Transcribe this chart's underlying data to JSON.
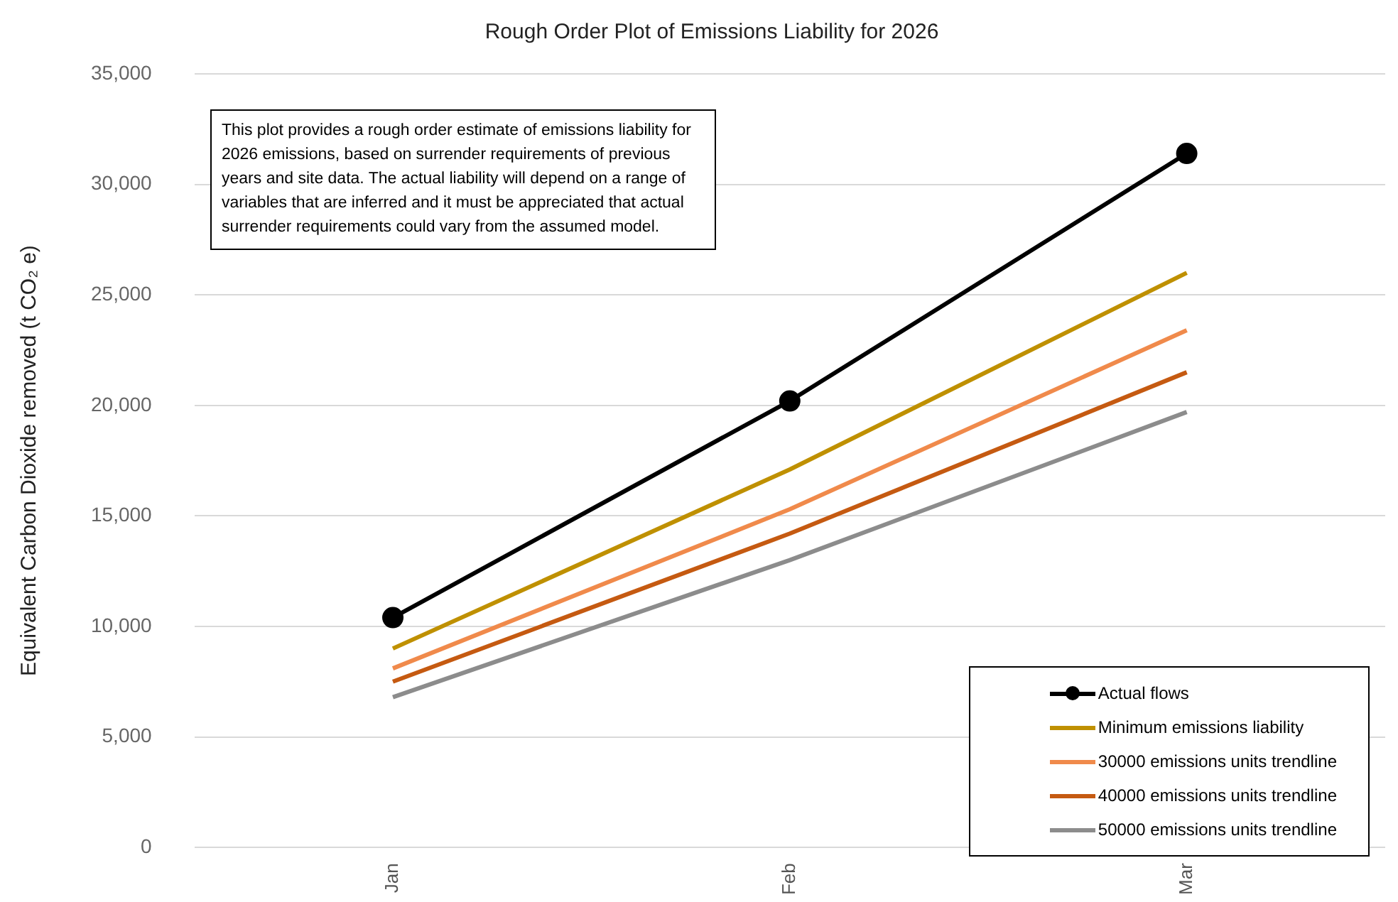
{
  "chart_data": {
    "type": "line",
    "title": "Rough Order Plot of Emissions Liability for 2026",
    "ylabel": "Equivalent Carbon Dioxide removed (t CO₂ e)",
    "categories": [
      "Jan",
      "Feb",
      "Mar"
    ],
    "series": [
      {
        "name": "Actual flows",
        "color": "#000000",
        "values": [
          10400,
          20200,
          31400
        ],
        "marker": "circle"
      },
      {
        "name": "Minimum emissions liability",
        "color": "#bf9000",
        "values": [
          9000,
          17100,
          26000
        ],
        "marker": "none"
      },
      {
        "name": "30000 emissions units trendline",
        "color": "#f08a4b",
        "values": [
          8100,
          15300,
          23400
        ],
        "marker": "none"
      },
      {
        "name": "40000 emissions units trendline",
        "color": "#c55a11",
        "values": [
          7500,
          14200,
          21500
        ],
        "marker": "none"
      },
      {
        "name": "50000 emissions units trendline",
        "color": "#8c8c8c",
        "values": [
          6800,
          13000,
          19700
        ],
        "marker": "none"
      }
    ],
    "ylim": [
      0,
      35000
    ],
    "yticks": [
      {
        "value": 0,
        "label": "0"
      },
      {
        "value": 5000,
        "label": "5,000"
      },
      {
        "value": 10000,
        "label": "10,000"
      },
      {
        "value": 15000,
        "label": "15,000"
      },
      {
        "value": 20000,
        "label": "20,000"
      },
      {
        "value": 25000,
        "label": "25,000"
      },
      {
        "value": 30000,
        "label": "30,000"
      },
      {
        "value": 35000,
        "label": "35,000"
      }
    ],
    "grid": "y",
    "legend": "bottom right",
    "annotations": [
      "This plot provides a rough order estimate of emissions liability for 2026 emissions, based on surrender requirements of previous years and site data. The actual liability will depend on a range of variables that are inferred and it must be appreciated that actual surrender requirements could vary from the assumed model."
    ]
  }
}
